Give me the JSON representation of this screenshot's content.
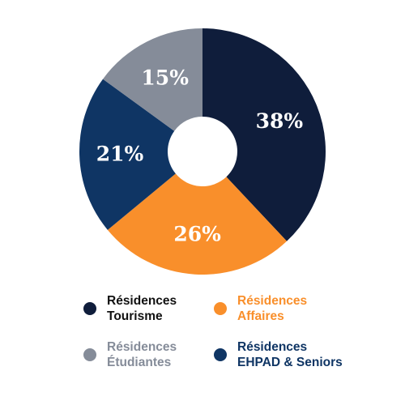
{
  "colors": {
    "tourisme": "#0f1d3b",
    "affaires": "#f98f2b",
    "etudiantes": "#858c99",
    "ehpad": "#0f3564",
    "text_dark": "#111111"
  },
  "chart_data": {
    "type": "pie",
    "donut": true,
    "order": "clockwise-from-top",
    "categories": [
      "Résidences Tourisme",
      "Résidences Affaires",
      "Résidences EHPAD & Seniors",
      "Résidences Étudiantes"
    ],
    "values": [
      38,
      26,
      21,
      15
    ],
    "data_labels": [
      "38%",
      "26%",
      "21%",
      "15%"
    ],
    "color_keys": [
      "tourisme",
      "affaires",
      "ehpad",
      "etudiantes"
    ],
    "legend_placement": "bottom"
  },
  "legend": {
    "items": [
      {
        "line1": "Résidences",
        "line2": "Tourisme",
        "color_key": "tourisme",
        "text_color_key": "text_dark"
      },
      {
        "line1": "Résidences",
        "line2": "Affaires",
        "color_key": "affaires",
        "text_color_key": "affaires"
      },
      {
        "line1": "Résidences",
        "line2": "Étudiantes",
        "color_key": "etudiantes",
        "text_color_key": "etudiantes"
      },
      {
        "line1": "Résidences",
        "line2": "EHPAD & Seniors",
        "color_key": "ehpad",
        "text_color_key": "ehpad"
      }
    ]
  }
}
